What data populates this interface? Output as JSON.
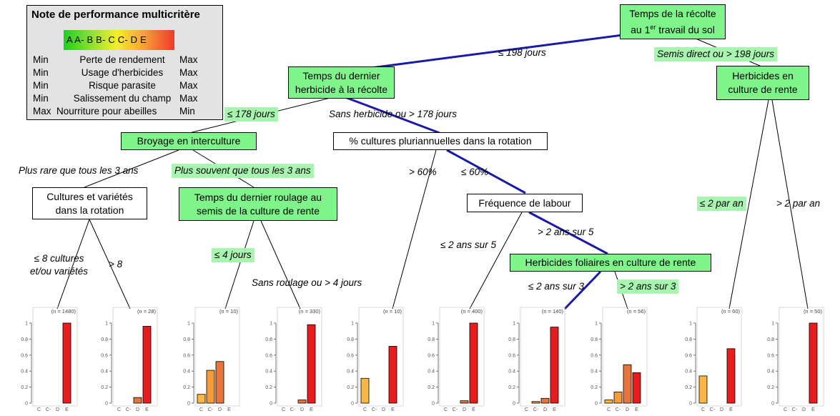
{
  "legend": {
    "title": "Note de performance multicritère",
    "scale": "A A- B B- C C- D E",
    "rows": [
      {
        "left": "Min",
        "criterion": "Perte de rendement",
        "right": "Max"
      },
      {
        "left": "Min",
        "criterion": "Usage d'herbicides",
        "right": "Max"
      },
      {
        "left": "Min",
        "criterion": "Risque parasite",
        "right": "Max"
      },
      {
        "left": "Min",
        "criterion": "Salissement du champ",
        "right": "Max"
      },
      {
        "left": "Max",
        "criterion": "Nourriture pour abeilles",
        "right": "Min"
      }
    ]
  },
  "nodes": {
    "root": {
      "line1": "Temps de la récolte",
      "line2_pre": "au 1",
      "line2_sup": "er",
      "line2_post": " travail du sol"
    },
    "dernier_herbicide": {
      "line1": "Temps du dernier",
      "line2": "herbicide à la récolte"
    },
    "herbicides_culture": {
      "line1": "Herbicides en",
      "line2": "culture de rente"
    },
    "broyage": {
      "text": "Broyage en interculture"
    },
    "cultures_pluri": {
      "text": "% cultures pluriannuelles dans la rotation"
    },
    "cultures_varietes": {
      "line1": "Cultures et variétés",
      "line2": "dans la rotation"
    },
    "roulage": {
      "line1": "Temps du dernier roulage au",
      "line2": "semis de la culture de rente"
    },
    "labour": {
      "text": "Fréquence de labour"
    },
    "foliaires": {
      "text": "Herbicides foliaires en culture de rente"
    }
  },
  "edges": {
    "le198": "≤ 198 jours",
    "semis_direct": "Semis direct ou > 198 jours",
    "le178": "≤ 178 jours",
    "sans_herbicide": "Sans herbicide ou > 178 jours",
    "plus_rare": "Plus rare que tous les 3 ans",
    "plus_souvent": "Plus souvent que tous les 3 ans",
    "gt60": "> 60%",
    "le60": "≤ 60%",
    "le8_line1": "≤ 8 cultures",
    "le8_line2": "et/ou variétés",
    "gt8": "> 8",
    "le4": "≤ 4 jours",
    "sans_roulage": "Sans roulage ou > 4 jours",
    "le2_5": "≤ 2 ans sur 5",
    "gt2_5": "> 2 ans sur 5",
    "le2_3": "≤ 2 ans sur 3",
    "gt2_3": "> 2 ans sur 3",
    "le2an": "≤ 2 par an",
    "gt2an": "> 2 par an"
  },
  "colors": {
    "C": "#f9b745",
    "C-": "#f69b3a",
    "D": "#e6743c",
    "E": "#e81c1c",
    "main_path": "#1a1aa8",
    "node_green": "#7ef48a",
    "label_green": "#a8f5b0"
  },
  "chart_data": {
    "type": "bar",
    "categories": [
      "C",
      "C-",
      "D",
      "E"
    ],
    "ylim": [
      0,
      1
    ],
    "yticks": [
      "0",
      "0.2",
      "0.4",
      "0.6",
      "0.8",
      "1"
    ],
    "leaves": [
      {
        "n": "(n = 1480)",
        "values": [
          0,
          0,
          0,
          1.0
        ]
      },
      {
        "n": "(n = 28)",
        "values": [
          0,
          0,
          0.07,
          0.96
        ]
      },
      {
        "n": "(n = 10)",
        "values": [
          0.11,
          0.41,
          0.52,
          0
        ]
      },
      {
        "n": "(n = 330)",
        "values": [
          0,
          0,
          0.04,
          0.98
        ]
      },
      {
        "n": "(n = 10)",
        "values": [
          0.31,
          0,
          0,
          0.71
        ]
      },
      {
        "n": "(n = 400)",
        "values": [
          0,
          0,
          0.03,
          1.0
        ]
      },
      {
        "n": "(n = 140)",
        "values": [
          0,
          0.02,
          0.06,
          0.95
        ]
      },
      {
        "n": "(n = 56)",
        "values": [
          0.04,
          0.14,
          0.48,
          0.38
        ]
      },
      {
        "n": "(n = 60)",
        "values": [
          0.34,
          0,
          0,
          0.68
        ]
      },
      {
        "n": "(n = 50)",
        "values": [
          0,
          0,
          0,
          1.0
        ]
      }
    ]
  }
}
